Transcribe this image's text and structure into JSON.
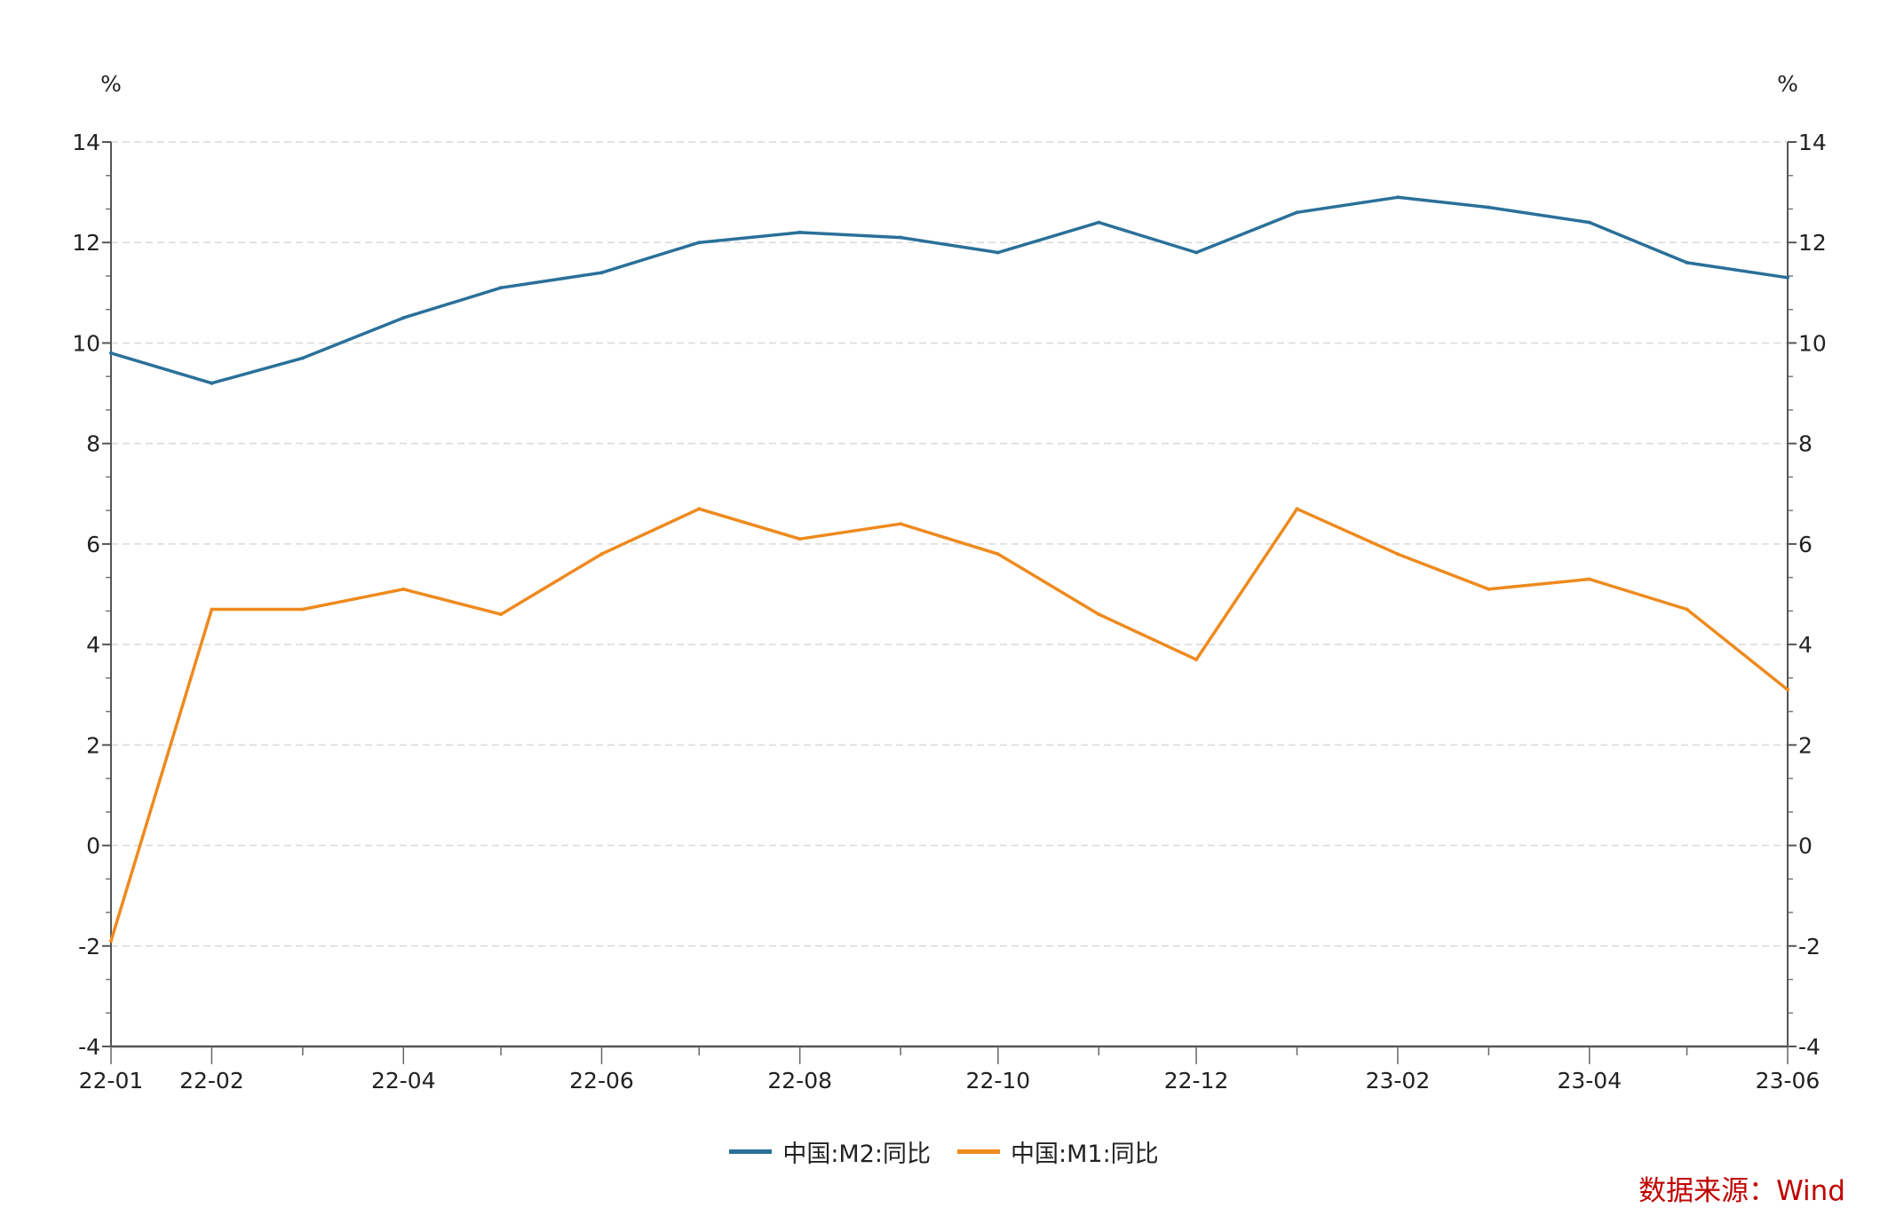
{
  "chart_data": {
    "type": "line",
    "title": "",
    "ylabel_left": "%",
    "ylabel_right": "%",
    "ylim": [
      -4,
      14
    ],
    "yticks": [
      14,
      12,
      10,
      8,
      6,
      4,
      2,
      0,
      -2,
      -4
    ],
    "grid": true,
    "x": [
      "22-01",
      "22-02",
      "22-03",
      "22-04",
      "22-05",
      "22-06",
      "22-07",
      "22-08",
      "22-09",
      "22-10",
      "22-11",
      "22-12",
      "23-01",
      "23-02",
      "23-03",
      "23-04",
      "23-05",
      "23-06"
    ],
    "xtick_labels": [
      "22-01",
      "22-02",
      "22-04",
      "22-06",
      "22-08",
      "22-10",
      "22-12",
      "23-02",
      "23-04",
      "23-06"
    ],
    "series": [
      {
        "name": "中国:M2:同比",
        "color": "#2a7099",
        "values": [
          9.8,
          9.2,
          9.7,
          10.5,
          11.1,
          11.4,
          12.0,
          12.2,
          12.1,
          11.8,
          12.4,
          11.8,
          12.6,
          12.9,
          12.7,
          12.4,
          11.6,
          11.3
        ]
      },
      {
        "name": "中国:M1:同比",
        "color": "#ee8a1e",
        "values": [
          -1.9,
          4.7,
          4.7,
          5.1,
          4.6,
          5.8,
          6.7,
          6.1,
          6.4,
          5.8,
          4.6,
          3.7,
          6.7,
          5.8,
          5.1,
          5.3,
          4.7,
          3.1
        ]
      }
    ],
    "legend_position": "bottom-center",
    "source": "数据来源：Wind"
  }
}
